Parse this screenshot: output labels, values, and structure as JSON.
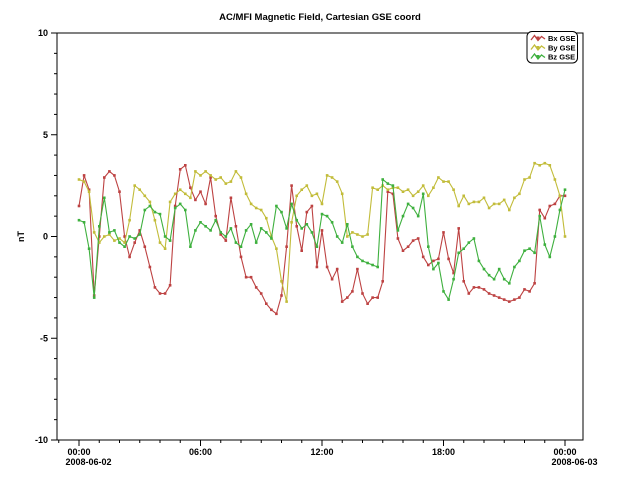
{
  "title": "AC/MFI  Magnetic Field, Cartesian GSE coord",
  "ylabel": "nT",
  "chart_data": {
    "type": "line",
    "title": "AC/MFI  Magnetic Field, Cartesian GSE coord",
    "xlabel": "",
    "ylabel": "nT",
    "ylim": [
      -10,
      10
    ],
    "y_major_ticks": [
      -10,
      -5,
      0,
      5,
      10
    ],
    "y_minor_step": 1,
    "x_axis_hours_range": [
      -1.1,
      24.9
    ],
    "x_minor_step_hours": 1,
    "x_major_ticks": [
      {
        "hour": 0,
        "label": "00:00",
        "date": "2008-06-02"
      },
      {
        "hour": 6,
        "label": "06:00",
        "date": ""
      },
      {
        "hour": 12,
        "label": "12:00",
        "date": ""
      },
      {
        "hour": 18,
        "label": "18:00",
        "date": ""
      },
      {
        "hour": 24,
        "label": "00:00",
        "date": "2008-06-03"
      }
    ],
    "grid": false,
    "legend_position": "top-right",
    "x_start_hour": 0,
    "x_step_hours": 0.25,
    "series": [
      {
        "name": "Bx GSE",
        "color": "#bd4242",
        "values": [
          1.5,
          3.0,
          2.3,
          -2.9,
          0.0,
          2.9,
          3.2,
          3.0,
          2.2,
          0.0,
          -1.0,
          -0.3,
          0.3,
          -0.5,
          -1.5,
          -2.5,
          -2.8,
          -2.8,
          -2.4,
          1.5,
          3.3,
          3.5,
          2.4,
          1.8,
          2.2,
          1.6,
          2.9,
          1.0,
          0.1,
          -0.2,
          1.9,
          0.5,
          -1.0,
          -2.0,
          -2.0,
          -2.5,
          -2.8,
          -3.3,
          -3.6,
          -3.8,
          -2.9,
          -0.5,
          2.5,
          0.5,
          -0.7,
          1.2,
          1.5,
          -1.5,
          0.3,
          -1.5,
          -2.1,
          -1.6,
          -3.2,
          -3.0,
          -2.7,
          -1.6,
          -2.8,
          -3.3,
          -3.0,
          -3.0,
          -2.2,
          2.2,
          2.1,
          -0.1,
          -0.7,
          -0.5,
          -0.2,
          -0.1,
          -1.0,
          -1.4,
          -1.2,
          -1.1,
          0.2,
          -1.1,
          -1.8,
          0.4,
          -2.2,
          -2.8,
          -2.5,
          -2.5,
          -2.6,
          -2.8,
          -2.9,
          -3.0,
          -3.1,
          -3.2,
          -3.1,
          -3.0,
          -2.6,
          -2.7,
          -2.3,
          1.3,
          0.9,
          1.5,
          1.6,
          2.0,
          2.0
        ]
      },
      {
        "name": "By GSE",
        "color": "#c2bc3a",
        "values": [
          2.8,
          2.7,
          2.2,
          0.2,
          -0.3,
          0.0,
          0.1,
          -0.2,
          -0.1,
          -0.3,
          0.8,
          2.5,
          2.3,
          2.0,
          1.7,
          0.8,
          -0.3,
          -0.6,
          1.7,
          2.1,
          2.3,
          2.1,
          1.9,
          3.2,
          3.0,
          3.2,
          3.0,
          2.8,
          2.9,
          2.6,
          2.7,
          3.2,
          2.9,
          2.1,
          1.6,
          1.4,
          1.3,
          0.9,
          0.0,
          -0.6,
          -2.2,
          -3.2,
          0.7,
          2.0,
          2.3,
          2.5,
          2.0,
          2.1,
          1.6,
          3.0,
          2.9,
          2.7,
          2.1,
          0.0,
          0.2,
          0.1,
          0.0,
          0.1,
          2.4,
          2.3,
          2.5,
          2.3,
          2.4,
          2.4,
          2.2,
          2.3,
          2.0,
          2.2,
          2.5,
          2.0,
          2.4,
          2.9,
          2.7,
          2.7,
          2.3,
          1.5,
          2.0,
          1.6,
          1.7,
          1.7,
          1.9,
          1.4,
          1.6,
          1.6,
          1.8,
          1.3,
          1.9,
          2.1,
          2.8,
          2.9,
          3.6,
          3.5,
          3.6,
          3.5,
          2.8,
          2.0,
          0.0
        ]
      },
      {
        "name": "Bz GSE",
        "color": "#3eb03e",
        "values": [
          0.8,
          0.7,
          -0.6,
          -3.0,
          0.5,
          1.9,
          0.2,
          0.3,
          -0.3,
          -0.5,
          0.0,
          -0.1,
          0.1,
          1.3,
          1.5,
          1.2,
          1.1,
          0.0,
          -0.2,
          1.4,
          1.6,
          1.3,
          -0.5,
          0.3,
          0.7,
          0.5,
          0.3,
          0.8,
          0.2,
          0.0,
          0.4,
          -0.3,
          -0.5,
          0.3,
          0.6,
          -0.3,
          0.4,
          0.2,
          -0.1,
          1.5,
          1.2,
          0.4,
          1.6,
          0.8,
          0.4,
          0.6,
          0.2,
          -0.5,
          1.1,
          1.0,
          0.7,
          0.0,
          -0.3,
          0.6,
          -0.5,
          -1.0,
          -1.2,
          -1.3,
          -1.4,
          -1.5,
          2.8,
          2.6,
          2.5,
          0.3,
          1.0,
          1.6,
          1.4,
          1.0,
          2.1,
          -0.5,
          -1.6,
          -1.3,
          -2.7,
          -3.1,
          -2.1,
          -0.8,
          -0.6,
          -0.3,
          -0.1,
          -1.2,
          -1.6,
          -1.9,
          -2.1,
          -1.6,
          -2.1,
          -2.3,
          -1.5,
          -1.2,
          -0.7,
          -0.6,
          -0.8,
          1.0,
          -0.4,
          -1.0,
          0.0,
          1.3,
          2.3
        ]
      }
    ]
  }
}
